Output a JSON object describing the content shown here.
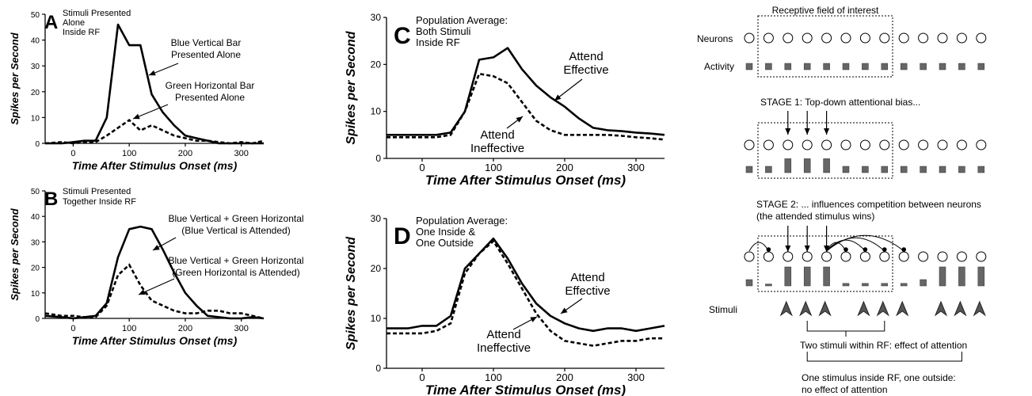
{
  "chart_data": [
    {
      "panel": "A",
      "type": "line",
      "title": "Stimuli Presented Alone Inside RF",
      "xlabel": "Time After Stimulus Onset (ms)",
      "ylabel": "Spikes per Second",
      "xlim": [
        -50,
        340
      ],
      "ylim": [
        0,
        50
      ],
      "xticks": [
        0,
        100,
        200,
        300
      ],
      "yticks": [
        0,
        10,
        20,
        30,
        40,
        50
      ],
      "series": [
        {
          "name": "Blue Vertical Bar Presented Alone",
          "style": "solid",
          "x": [
            -50,
            -20,
            0,
            20,
            40,
            60,
            80,
            100,
            120,
            140,
            160,
            180,
            200,
            220,
            240,
            260,
            280,
            300,
            320,
            340
          ],
          "y": [
            0,
            0,
            0.5,
            1,
            1,
            10,
            46,
            38,
            38,
            19,
            12,
            7,
            3,
            2,
            1,
            0,
            0,
            0,
            0,
            0
          ]
        },
        {
          "name": "Green Horizontal Bar Presented Alone",
          "style": "dashed",
          "x": [
            -50,
            -20,
            0,
            20,
            40,
            60,
            80,
            100,
            120,
            140,
            160,
            180,
            200,
            220,
            240,
            260,
            280,
            300,
            320,
            340
          ],
          "y": [
            0,
            0.5,
            0,
            0.5,
            0.5,
            3,
            6,
            9,
            5,
            7,
            5,
            3,
            2,
            1,
            1,
            0.5,
            0,
            0.5,
            0,
            1
          ]
        }
      ],
      "annotations": [
        "Blue Vertical Bar\nPresented Alone",
        "Green Horizontal Bar\nPresented Alone"
      ]
    },
    {
      "panel": "B",
      "type": "line",
      "title": "Stimuli Presented Together Inside RF",
      "xlabel": "Time After Stimulus Onset (ms)",
      "ylabel": "Spikes per Second",
      "xlim": [
        -50,
        340
      ],
      "ylim": [
        0,
        50
      ],
      "xticks": [
        0,
        100,
        200,
        300
      ],
      "yticks": [
        0,
        10,
        20,
        30,
        40,
        50
      ],
      "series": [
        {
          "name": "Blue Vertical + Green Horizontal (Blue Vertical is Attended)",
          "style": "solid",
          "x": [
            -50,
            -20,
            0,
            20,
            40,
            60,
            80,
            100,
            120,
            140,
            160,
            180,
            200,
            220,
            240,
            260,
            280,
            300,
            320,
            340
          ],
          "y": [
            1,
            0.5,
            0,
            0.5,
            1,
            6,
            24,
            35,
            36,
            35,
            27,
            18,
            10,
            5,
            1,
            0.5,
            0,
            0,
            0.5,
            0
          ]
        },
        {
          "name": "Blue Vertical + Green Horizontal (Green Horizontal is Attended)",
          "style": "dashed",
          "x": [
            -50,
            -20,
            0,
            20,
            40,
            60,
            80,
            100,
            120,
            140,
            160,
            180,
            200,
            220,
            240,
            260,
            280,
            300,
            320,
            340
          ],
          "y": [
            2,
            1,
            1,
            0.5,
            0.5,
            5,
            17,
            21,
            13,
            7,
            5,
            3,
            2,
            2,
            3,
            3,
            2,
            2,
            1,
            0
          ]
        }
      ],
      "annotations": [
        "Blue Vertical + Green Horizontal\n(Blue Vertical is Attended)",
        "Blue Vertical + Green Horizontal\n(Green Horizontal is Attended)"
      ]
    },
    {
      "panel": "C",
      "type": "line",
      "title": "Population Average: Both Stimuli Inside RF",
      "xlabel": "Time After Stimulus Onset (ms)",
      "ylabel": "Spikes per Second",
      "xlim": [
        -50,
        340
      ],
      "ylim": [
        0,
        30
      ],
      "xticks": [
        0,
        100,
        200,
        300
      ],
      "yticks": [
        0,
        10,
        20,
        30
      ],
      "series": [
        {
          "name": "Attend Effective",
          "style": "solid",
          "x": [
            -50,
            -20,
            0,
            20,
            40,
            60,
            80,
            100,
            120,
            140,
            160,
            180,
            200,
            220,
            240,
            260,
            280,
            300,
            320,
            340
          ],
          "y": [
            5,
            5,
            5,
            5,
            5.5,
            10,
            21,
            21.5,
            23.5,
            19,
            15.5,
            13,
            11,
            8.5,
            6.5,
            6,
            5.8,
            5.5,
            5.3,
            5
          ]
        },
        {
          "name": "Attend Ineffective",
          "style": "dashed",
          "x": [
            -50,
            -20,
            0,
            20,
            40,
            60,
            80,
            100,
            120,
            140,
            160,
            180,
            200,
            220,
            240,
            260,
            280,
            300,
            320,
            340
          ],
          "y": [
            4.5,
            4.5,
            4.5,
            4.5,
            5,
            10,
            18,
            17.5,
            16,
            12,
            8,
            6,
            5,
            5,
            5,
            5,
            4.8,
            4.5,
            4.3,
            4
          ]
        }
      ],
      "annotations": [
        "Attend\nEffective",
        "Attend\nIneffective"
      ]
    },
    {
      "panel": "D",
      "type": "line",
      "title": "Population Average: One Inside & One Outside",
      "xlabel": "Time After Stimulus Onset (ms)",
      "ylabel": "Spikes per Second",
      "xlim": [
        -50,
        340
      ],
      "ylim": [
        0,
        30
      ],
      "xticks": [
        0,
        100,
        200,
        300
      ],
      "yticks": [
        0,
        10,
        20,
        30
      ],
      "series": [
        {
          "name": "Attend Effective",
          "style": "solid",
          "x": [
            -50,
            -20,
            0,
            20,
            40,
            60,
            80,
            100,
            120,
            140,
            160,
            180,
            200,
            220,
            240,
            260,
            280,
            300,
            320,
            340
          ],
          "y": [
            8,
            8,
            8.5,
            8.5,
            10.5,
            20,
            23,
            26,
            22,
            17,
            13,
            10.5,
            9,
            8,
            7.5,
            8,
            8,
            7.5,
            8,
            8.5
          ]
        },
        {
          "name": "Attend Ineffective",
          "style": "dashed",
          "x": [
            -50,
            -20,
            0,
            20,
            40,
            60,
            80,
            100,
            120,
            140,
            160,
            180,
            200,
            220,
            240,
            260,
            280,
            300,
            320,
            340
          ],
          "y": [
            7,
            7,
            7,
            7.5,
            9,
            19,
            23,
            25.5,
            21,
            16,
            11,
            7.5,
            5.5,
            5,
            4.5,
            5,
            5.5,
            5.5,
            6,
            6
          ]
        }
      ],
      "annotations": [
        "Attend\nEffective",
        "Attend\nIneffective"
      ]
    }
  ],
  "panelA": {
    "letter": "A",
    "label1": "Stimuli Presented",
    "label2": "Alone",
    "label3": "Inside RF",
    "ann1a": "Blue Vertical Bar",
    "ann1b": "Presented Alone",
    "ann2a": "Green Horizontal Bar",
    "ann2b": "Presented Alone"
  },
  "panelB": {
    "letter": "B",
    "label1": "Stimuli Presented",
    "label2": "Together Inside RF",
    "ann1a": "Blue Vertical + Green Horizontal",
    "ann1b": "(Blue Vertical is Attended)",
    "ann2a": "Blue Vertical + Green Horizontal",
    "ann2b": "(Green Horizontal is Attended)"
  },
  "panelC": {
    "letter": "C",
    "label1": "Population Average:",
    "label2": "Both Stimuli",
    "label3": "Inside RF",
    "ann1a": "Attend",
    "ann1b": "Effective",
    "ann2a": "Attend",
    "ann2b": "Ineffective"
  },
  "panelD": {
    "letter": "D",
    "label1": "Population Average:",
    "label2": "One Inside &",
    "label3": "One Outside",
    "ann1a": "Attend",
    "ann1b": "Effective",
    "ann2a": "Attend",
    "ann2b": "Ineffective"
  },
  "axes": {
    "xlabel": "Time After Stimulus Onset (ms)",
    "ylabel": "Spikes per Second"
  },
  "diagram": {
    "rf_label": "Receptive field of interest",
    "row_neurons": "Neurons",
    "row_activity": "Activity",
    "stage1": "STAGE 1: Top-down attentional bias...",
    "stage2a": "STAGE 2: ... influences competition between neurons",
    "stage2b": "(the attended stimulus wins)",
    "stimuli": "Stimuli",
    "note1": "Two stimuli within RF: effect of attention",
    "note2a": "One stimulus inside RF, one outside:",
    "note2b": "no effect of attention",
    "activity_baseline": [
      1,
      1,
      1,
      1,
      1,
      1,
      1,
      1,
      1,
      1,
      1,
      1,
      1
    ],
    "activity_stage1": [
      1,
      1,
      2.2,
      2.2,
      2.2,
      1,
      1,
      1,
      1,
      1,
      1,
      1,
      1
    ],
    "activity_stage2": [
      1,
      0.3,
      3,
      3,
      3,
      0.4,
      0.4,
      0.4,
      0.4,
      1,
      3,
      3,
      3,
      1
    ]
  }
}
